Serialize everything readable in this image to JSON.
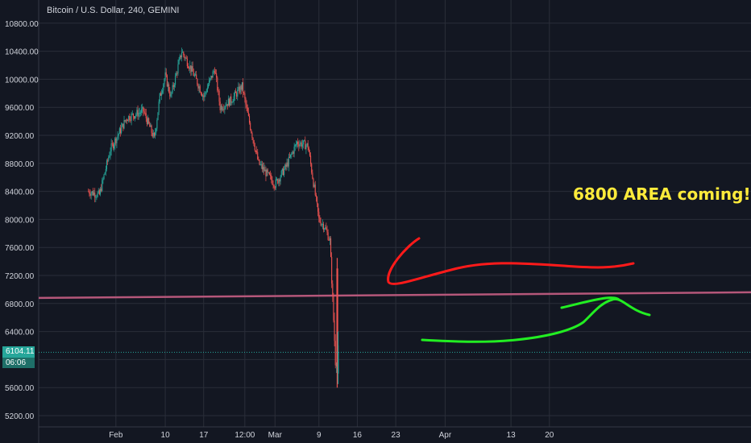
{
  "header": {
    "title": "Bitcoin / U.S. Dollar, 240, GEMINI"
  },
  "annotation": {
    "text": "6800 AREA coming!"
  },
  "price_tag": {
    "price": "6104.11",
    "countdown": "06:06"
  },
  "colors": {
    "background": "#131722",
    "grid": "#2a2e39",
    "up_candle": "#26a69a",
    "down_candle": "#ef5350",
    "trendline": "#b5577a",
    "red_drawing": "#ff1a1a",
    "green_drawing": "#22ee22",
    "annotation": "#ffeb3b",
    "current_price_line": "#26a69a"
  },
  "chart_data": {
    "type": "candlestick",
    "symbol": "Bitcoin / U.S. Dollar",
    "interval": "240",
    "exchange": "GEMINI",
    "ylim": [
      5100,
      10900
    ],
    "y_ticks": [
      "5200.00",
      "5600.00",
      "6000.00",
      "6400.00",
      "6800.00",
      "7200.00",
      "7600.00",
      "8000.00",
      "8400.00",
      "8800.00",
      "9200.00",
      "9600.00",
      "10000.00",
      "10400.00",
      "10800.00"
    ],
    "x_ticks": [
      "Feb",
      "10",
      "17",
      "12:00",
      "Mar",
      "9",
      "16",
      "23",
      "Apr",
      "13",
      "20"
    ],
    "grid": true,
    "price_trajectory": [
      {
        "date": "2020-01-27",
        "price": 8400
      },
      {
        "date": "2020-01-29",
        "price": 8350
      },
      {
        "date": "2020-01-31",
        "price": 9000
      },
      {
        "date": "2020-02-03",
        "price": 9450
      },
      {
        "date": "2020-02-06",
        "price": 9550
      },
      {
        "date": "2020-02-08",
        "price": 9150
      },
      {
        "date": "2020-02-09",
        "price": 9750
      },
      {
        "date": "2020-02-10",
        "price": 10050
      },
      {
        "date": "2020-02-11",
        "price": 9750
      },
      {
        "date": "2020-02-13",
        "price": 10400
      },
      {
        "date": "2020-02-15",
        "price": 10100
      },
      {
        "date": "2020-02-17",
        "price": 9750
      },
      {
        "date": "2020-02-19",
        "price": 10150
      },
      {
        "date": "2020-02-20",
        "price": 9600
      },
      {
        "date": "2020-02-22",
        "price": 9700
      },
      {
        "date": "2020-02-24",
        "price": 9900
      },
      {
        "date": "2020-02-25",
        "price": 9500
      },
      {
        "date": "2020-02-27",
        "price": 8800
      },
      {
        "date": "2020-02-29",
        "price": 8600
      },
      {
        "date": "2020-03-01",
        "price": 8500
      },
      {
        "date": "2020-03-03",
        "price": 8750
      },
      {
        "date": "2020-03-05",
        "price": 9100
      },
      {
        "date": "2020-03-07",
        "price": 9050
      },
      {
        "date": "2020-03-09",
        "price": 8000
      },
      {
        "date": "2020-03-10",
        "price": 7900
      },
      {
        "date": "2020-03-11",
        "price": 7700
      },
      {
        "date": "2020-03-12",
        "price": 6000
      },
      {
        "date": "2020-03-12T12:00",
        "price": 6104.11
      }
    ],
    "low": 5600,
    "current_price": 6104.11,
    "trendline": {
      "start": {
        "date": "2020-01-27",
        "price": 6880
      },
      "end": {
        "date": "2020-04-22",
        "price": 6960
      }
    }
  }
}
